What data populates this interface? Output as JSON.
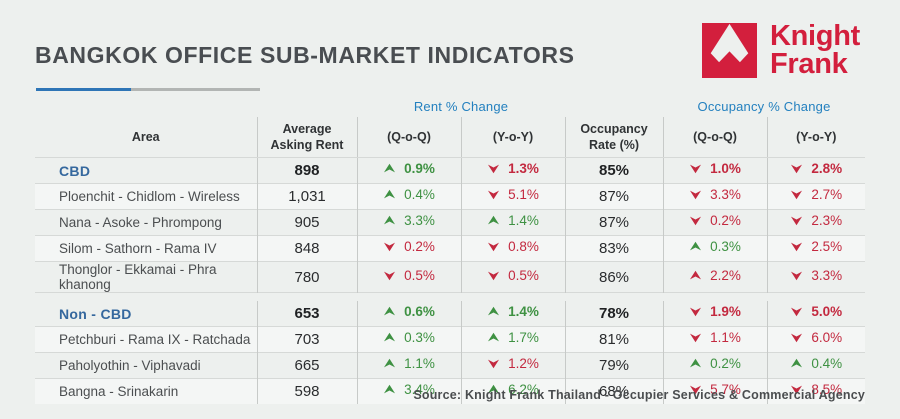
{
  "header": {
    "title": "BANGKOK OFFICE SUB-MARKET INDICATORS",
    "logo": {
      "line1": "Knight",
      "line2": "Frank",
      "brand_color": "#d31f3d"
    }
  },
  "colors": {
    "positive_green": "#3e9142",
    "negative_red": "#c3293f",
    "group_header_blue": "#2380bf",
    "section_blue": "#35689e",
    "background": "#edf0ee"
  },
  "table": {
    "group_headers": {
      "rent": "Rent % Change",
      "occupancy": "Occupancy % Change"
    },
    "columns": [
      {
        "id": "area",
        "label": "Area"
      },
      {
        "id": "avg_rent",
        "label": "Average\nAsking Rent"
      },
      {
        "id": "rent_qoq",
        "label": "(Q-o-Q)"
      },
      {
        "id": "rent_yoy",
        "label": "(Y-o-Y)"
      },
      {
        "id": "occ_rate",
        "label": "Occupancy\nRate (%)"
      },
      {
        "id": "occ_qoq",
        "label": "(Q-o-Q)"
      },
      {
        "id": "occ_yoy",
        "label": "(Y-o-Y)"
      }
    ],
    "sections": [
      {
        "header_row": {
          "area": "CBD",
          "rent": "898",
          "rent_qoq": {
            "dir": "up",
            "tone": "green",
            "value": "0.9%"
          },
          "rent_yoy": {
            "dir": "down",
            "tone": "red",
            "value": "1.3%"
          },
          "occ": "85%",
          "occ_qoq": {
            "dir": "down",
            "tone": "red",
            "value": "1.0%"
          },
          "occ_yoy": {
            "dir": "down",
            "tone": "red",
            "value": "2.8%"
          }
        },
        "rows": [
          {
            "area": "Ploenchit - Chidlom - Wireless",
            "rent": "1,031",
            "rent_qoq": {
              "dir": "up",
              "tone": "green",
              "value": "0.4%"
            },
            "rent_yoy": {
              "dir": "down",
              "tone": "red",
              "value": "5.1%"
            },
            "occ": "87%",
            "occ_qoq": {
              "dir": "down",
              "tone": "red",
              "value": "3.3%"
            },
            "occ_yoy": {
              "dir": "down",
              "tone": "red",
              "value": "2.7%"
            }
          },
          {
            "area": "Nana - Asoke - Phrompong",
            "rent": "905",
            "rent_qoq": {
              "dir": "up",
              "tone": "green",
              "value": "3.3%"
            },
            "rent_yoy": {
              "dir": "up",
              "tone": "green",
              "value": "1.4%"
            },
            "occ": "87%",
            "occ_qoq": {
              "dir": "down",
              "tone": "red",
              "value": "0.2%"
            },
            "occ_yoy": {
              "dir": "down",
              "tone": "red",
              "value": "2.3%"
            }
          },
          {
            "area": "Silom - Sathorn - Rama IV",
            "rent": "848",
            "rent_qoq": {
              "dir": "down",
              "tone": "red",
              "value": "0.2%"
            },
            "rent_yoy": {
              "dir": "down",
              "tone": "red",
              "value": "0.8%"
            },
            "occ": "83%",
            "occ_qoq": {
              "dir": "up",
              "tone": "green",
              "value": "0.3%"
            },
            "occ_yoy": {
              "dir": "down",
              "tone": "red",
              "value": "2.5%"
            }
          },
          {
            "area": "Thonglor  - Ekkamai - Phra khanong",
            "rent": "780",
            "rent_qoq": {
              "dir": "down",
              "tone": "red",
              "value": "0.5%"
            },
            "rent_yoy": {
              "dir": "down",
              "tone": "red",
              "value": "0.5%"
            },
            "occ": "86%",
            "occ_qoq": {
              "dir": "up",
              "tone": "red",
              "value": "2.2%"
            },
            "occ_yoy": {
              "dir": "down",
              "tone": "red",
              "value": "3.3%"
            }
          }
        ]
      },
      {
        "header_row": {
          "area": "Non - CBD",
          "rent": "653",
          "rent_qoq": {
            "dir": "up",
            "tone": "green",
            "value": "0.6%"
          },
          "rent_yoy": {
            "dir": "up",
            "tone": "green",
            "value": "1.4%"
          },
          "occ": "78%",
          "occ_qoq": {
            "dir": "down",
            "tone": "red",
            "value": "1.9%"
          },
          "occ_yoy": {
            "dir": "down",
            "tone": "red",
            "value": "5.0%"
          }
        },
        "rows": [
          {
            "area": "Petchburi - Rama IX - Ratchada",
            "rent": "703",
            "rent_qoq": {
              "dir": "up",
              "tone": "green",
              "value": "0.3%"
            },
            "rent_yoy": {
              "dir": "up",
              "tone": "green",
              "value": "1.7%"
            },
            "occ": "81%",
            "occ_qoq": {
              "dir": "down",
              "tone": "red",
              "value": "1.1%"
            },
            "occ_yoy": {
              "dir": "down",
              "tone": "red",
              "value": "6.0%"
            }
          },
          {
            "area": "Paholyothin - Viphavadi",
            "rent": "665",
            "rent_qoq": {
              "dir": "up",
              "tone": "green",
              "value": "1.1%"
            },
            "rent_yoy": {
              "dir": "down",
              "tone": "red",
              "value": "1.2%"
            },
            "occ": "79%",
            "occ_qoq": {
              "dir": "up",
              "tone": "green",
              "value": "0.2%"
            },
            "occ_yoy": {
              "dir": "up",
              "tone": "green",
              "value": "0.4%"
            }
          },
          {
            "area": "Bangna - Srinakarin",
            "rent": "598",
            "rent_qoq": {
              "dir": "up",
              "tone": "green",
              "value": "3.4%"
            },
            "rent_yoy": {
              "dir": "up",
              "tone": "green",
              "value": "6.2%"
            },
            "occ": "68%",
            "occ_qoq": {
              "dir": "down",
              "tone": "red",
              "value": "5.7%"
            },
            "occ_yoy": {
              "dir": "down",
              "tone": "red",
              "value": "8.5%"
            }
          }
        ]
      }
    ]
  },
  "footer": {
    "source": "Source: Knight Frank Thailand - Occupier Services & Commercial Agency"
  }
}
